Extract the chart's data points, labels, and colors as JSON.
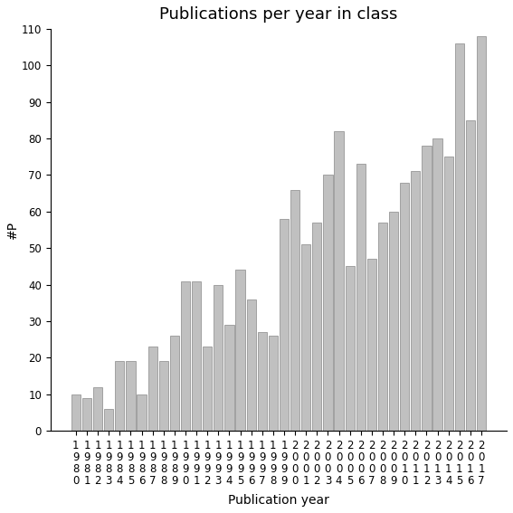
{
  "title": "Publications per year in class",
  "xlabel": "Publication year",
  "ylabel": "#P",
  "years": [
    1980,
    1981,
    1982,
    1983,
    1984,
    1985,
    1986,
    1987,
    1988,
    1989,
    1990,
    1991,
    1992,
    1993,
    1994,
    1995,
    1996,
    1997,
    1998,
    1999,
    2000,
    2001,
    2002,
    2003,
    2004,
    2005,
    2006,
    2007,
    2008,
    2009,
    2010,
    2011,
    2012,
    2013,
    2014,
    2015,
    2016,
    2017
  ],
  "values": [
    10,
    9,
    12,
    6,
    19,
    19,
    10,
    23,
    19,
    26,
    41,
    41,
    23,
    40,
    29,
    44,
    36,
    27,
    26,
    58,
    66,
    51,
    57,
    70,
    82,
    45,
    73,
    47,
    57,
    60,
    68,
    71,
    78,
    80,
    75,
    106,
    85,
    108
  ],
  "bar_color": "#c0c0c0",
  "bar_edge_color": "#888888",
  "ylim": [
    0,
    110
  ],
  "yticks": [
    0,
    10,
    20,
    30,
    40,
    50,
    60,
    70,
    80,
    90,
    100,
    110
  ],
  "title_fontsize": 13,
  "axis_label_fontsize": 10,
  "tick_fontsize": 8.5,
  "bg_color": "#ffffff"
}
